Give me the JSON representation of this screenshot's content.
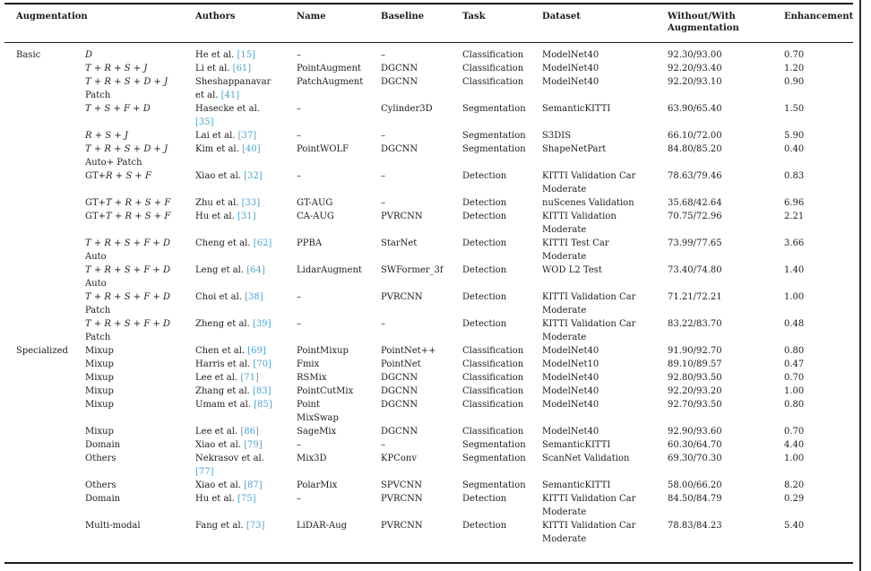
{
  "colors": {
    "citation": "#4ba3d3",
    "text": "#1c1c1c",
    "rule": "#1a1a1a"
  },
  "table": {
    "columns": [
      "Augmentation",
      "Authors",
      "Name",
      "Baseline",
      "Task",
      "Dataset",
      "Without/With\nAugmentation",
      "Enhancement"
    ],
    "rows": [
      {
        "group": "Basic",
        "pre": "",
        "math": "D",
        "line2": "",
        "authors": "He et al. [15]",
        "name": "–",
        "baseline": "–",
        "task": "Classification",
        "dataset": "ModelNet40",
        "ww": "92.30/93.00",
        "enh": "0.70"
      },
      {
        "group": "",
        "pre": "",
        "math": "T + R + S + J",
        "line2": "",
        "authors": "Li et al. [61]",
        "name": "PointAugment",
        "baseline": "DGCNN",
        "task": "Classification",
        "dataset": "ModelNet40",
        "ww": "92.20/93.40",
        "enh": "1.20"
      },
      {
        "group": "",
        "pre": "",
        "math": "T + R + S + D + J",
        "line2": "Patch",
        "authors": "Sheshappanavar\net al. [41]",
        "name": "PatchAugment",
        "baseline": "DGCNN",
        "task": "Classification",
        "dataset": "ModelNet40",
        "ww": "92.20/93.10",
        "enh": "0.90"
      },
      {
        "group": "",
        "pre": "",
        "math": "T + S + F + D",
        "line2": "",
        "authors": "Hasecke et al.\n[35]",
        "name": "–",
        "baseline": "Cylinder3D",
        "task": "Segmentation",
        "dataset": "SemanticKITTI",
        "ww": "63.90/65.40",
        "enh": "1.50"
      },
      {
        "group": "",
        "pre": "",
        "math": "R + S + J",
        "line2": "",
        "authors": "Lai et al. [37]",
        "name": "–",
        "baseline": "–",
        "task": "Segmentation",
        "dataset": "S3DIS",
        "ww": "66.10/72.00",
        "enh": "5.90"
      },
      {
        "group": "",
        "pre": "",
        "math": "T + R + S + D + J",
        "line2": "Auto+ Patch",
        "authors": "Kim et al. [40]",
        "name": "PointWOLF",
        "baseline": "DGCNN",
        "task": "Segmentation",
        "dataset": "ShapeNetPart",
        "ww": "84.80/85.20",
        "enh": "0.40"
      },
      {
        "group": "",
        "pre": "GT+",
        "math": "R + S + F",
        "line2": "",
        "authors": "Xiao et al. [32]",
        "name": "–",
        "baseline": "–",
        "task": "Detection",
        "dataset": "KITTI Validation Car\nModerate",
        "ww": "78.63/79.46",
        "enh": "0.83"
      },
      {
        "group": "",
        "pre": "GT+",
        "math": "T + R + S + F",
        "line2": "",
        "authors": "Zhu et al. [33]",
        "name": "GT-AUG",
        "baseline": "–",
        "task": "Detection",
        "dataset": "nuScenes Validation",
        "ww": "35.68/42.64",
        "enh": "6.96"
      },
      {
        "group": "",
        "pre": "GT+",
        "math": "T + R + S + F",
        "line2": "",
        "authors": "Hu et al. [31]",
        "name": "CA-AUG",
        "baseline": "PVRCNN",
        "task": "Detection",
        "dataset": "KITTI Validation\nModerate",
        "ww": "70.75/72.96",
        "enh": "2.21"
      },
      {
        "group": "",
        "pre": "",
        "math": "T + R + S + F + D",
        "line2": "Auto",
        "authors": "Cheng et al. [62]",
        "name": "PPBA",
        "baseline": "StarNet",
        "task": "Detection",
        "dataset": "KITTI Test Car\nModerate",
        "ww": "73.99/77.65",
        "enh": "3.66"
      },
      {
        "group": "",
        "pre": "",
        "math": "T + R + S + F + D",
        "line2": "Auto",
        "authors": "Leng et al. [64]",
        "name": "LidarAugment",
        "baseline": "SWFormer_3f",
        "task": "Detection",
        "dataset": "WOD L2 Test",
        "ww": "73.40/74.80",
        "enh": "1.40"
      },
      {
        "group": "",
        "pre": "",
        "math": "T + R + S + F + D",
        "line2": "Patch",
        "authors": "Choi et al. [38]",
        "name": "–",
        "baseline": "PVRCNN",
        "task": "Detection",
        "dataset": "KITTI Validation Car\nModerate",
        "ww": "71.21/72.21",
        "enh": "1.00"
      },
      {
        "group": "",
        "pre": "",
        "math": "T + R + S + F + D",
        "line2": "Patch",
        "authors": "Zheng et al. [39]",
        "name": "–",
        "baseline": "–",
        "task": "Detection",
        "dataset": "KITTI Validation Car\nModerate",
        "ww": "83.22/83.70",
        "enh": "0.48"
      },
      {
        "group": "Specialized",
        "pre": "Mixup",
        "math": "",
        "line2": "",
        "authors": "Chen et al. [69]",
        "name": "PointMixup",
        "baseline": "PointNet++",
        "task": "Classification",
        "dataset": "ModelNet40",
        "ww": "91.90/92.70",
        "enh": "0.80"
      },
      {
        "group": "",
        "pre": "Mixup",
        "math": "",
        "line2": "",
        "authors": "Harris et al. [70]",
        "name": "Fmix",
        "baseline": "PointNet",
        "task": "Classification",
        "dataset": "ModelNet10",
        "ww": "89.10/89.57",
        "enh": "0.47"
      },
      {
        "group": "",
        "pre": "Mixup",
        "math": "",
        "line2": "",
        "authors": "Lee et al. [71]",
        "name": "RSMix",
        "baseline": "DGCNN",
        "task": "Classification",
        "dataset": "ModelNet40",
        "ww": "92.80/93.50",
        "enh": "0.70"
      },
      {
        "group": "",
        "pre": "Mixup",
        "math": "",
        "line2": "",
        "authors": "Zhang et al. [83]",
        "name": "PointCutMix",
        "baseline": "DGCNN",
        "task": "Classification",
        "dataset": "ModelNet40",
        "ww": "92.20/93.20",
        "enh": "1.00"
      },
      {
        "group": "",
        "pre": "Mixup",
        "math": "",
        "line2": "",
        "authors": "Umam et al. [85]",
        "name": "Point\nMixSwap",
        "baseline": "DGCNN",
        "task": "Classification",
        "dataset": "ModelNet40",
        "ww": "92.70/93.50",
        "enh": "0.80"
      },
      {
        "group": "",
        "pre": "Mixup",
        "math": "",
        "line2": "",
        "authors": "Lee et al. [86]",
        "name": "SageMix",
        "baseline": "DGCNN",
        "task": "Classification",
        "dataset": "ModelNet40",
        "ww": "92.90/93.60",
        "enh": "0.70"
      },
      {
        "group": "",
        "pre": "Domain",
        "math": "",
        "line2": "",
        "authors": "Xiao et al. [79]",
        "name": "–",
        "baseline": "–",
        "task": "Segmentation",
        "dataset": "SemanticKITTI",
        "ww": "60.30/64.70",
        "enh": "4.40"
      },
      {
        "group": "",
        "pre": "Others",
        "math": "",
        "line2": "",
        "authors": "Nekrasov et al.\n[77]",
        "name": "Mix3D",
        "baseline": "KPConv",
        "task": "Segmentation",
        "dataset": "ScanNet Validation",
        "ww": "69.30/70.30",
        "enh": "1.00"
      },
      {
        "group": "",
        "pre": "Others",
        "math": "",
        "line2": "",
        "authors": "Xiao et al. [87]",
        "name": "PolarMix",
        "baseline": "SPVCNN",
        "task": "Segmentation",
        "dataset": "SemanticKITTI",
        "ww": "58.00/66.20",
        "enh": "8.20"
      },
      {
        "group": "",
        "pre": "Domain",
        "math": "",
        "line2": "",
        "authors": "Hu et al. [75]",
        "name": "–",
        "baseline": "PVRCNN",
        "task": "Detection",
        "dataset": "KITTI Validation Car\nModerate",
        "ww": "84.50/84.79",
        "enh": "0.29"
      },
      {
        "group": "",
        "pre": "Multi-modal",
        "math": "",
        "line2": "",
        "authors": "Fang et al. [73]",
        "name": "LiDAR-Aug",
        "baseline": "PVRCNN",
        "task": "Detection",
        "dataset": "KITTI Validation Car\nModerate",
        "ww": "78.83/84.23",
        "enh": "5.40"
      }
    ]
  }
}
